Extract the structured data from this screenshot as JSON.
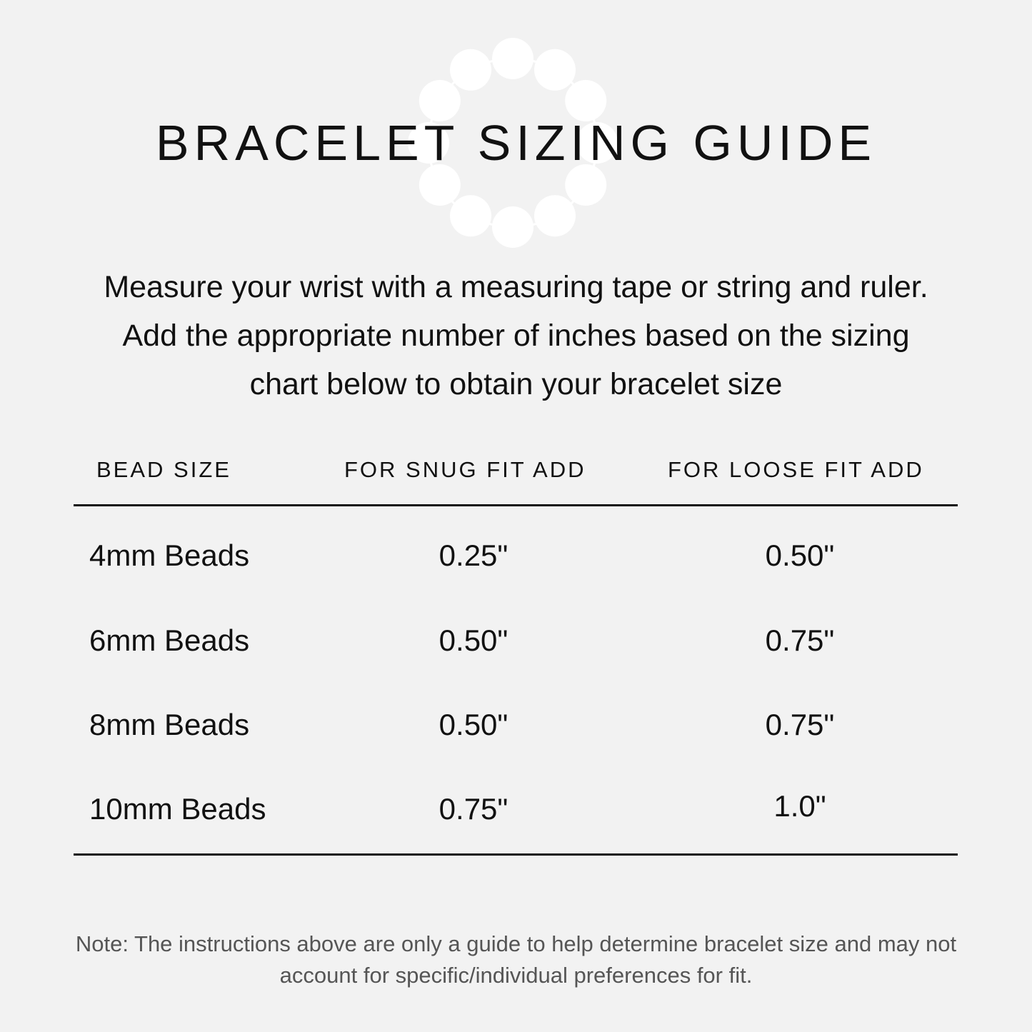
{
  "title": "BRACELET SIZING GUIDE",
  "decoration": {
    "icon": "bead-bracelet-icon",
    "bead_color": "#ffffff",
    "bead_count": 12
  },
  "background_color": "#f2f2f2",
  "intro": "Measure your wrist with a measuring tape or string and ruler.  Add the appropriate number of inches based on the sizing chart below to obtain your bracelet size",
  "table": {
    "headers": [
      "BEAD SIZE",
      "FOR SNUG FIT ADD",
      "FOR LOOSE FIT ADD"
    ],
    "rows": [
      [
        "4mm Beads",
        "0.25\"",
        "0.50\""
      ],
      [
        "6mm Beads",
        "0.50\"",
        "0.75\""
      ],
      [
        "8mm Beads",
        "0.50\"",
        "0.75\""
      ],
      [
        "10mm Beads",
        "0.75\"",
        "1.0\""
      ]
    ]
  },
  "note": "Note: The instructions above are only a guide to help determine bracelet size and may not account for specific/individual preferences for fit."
}
